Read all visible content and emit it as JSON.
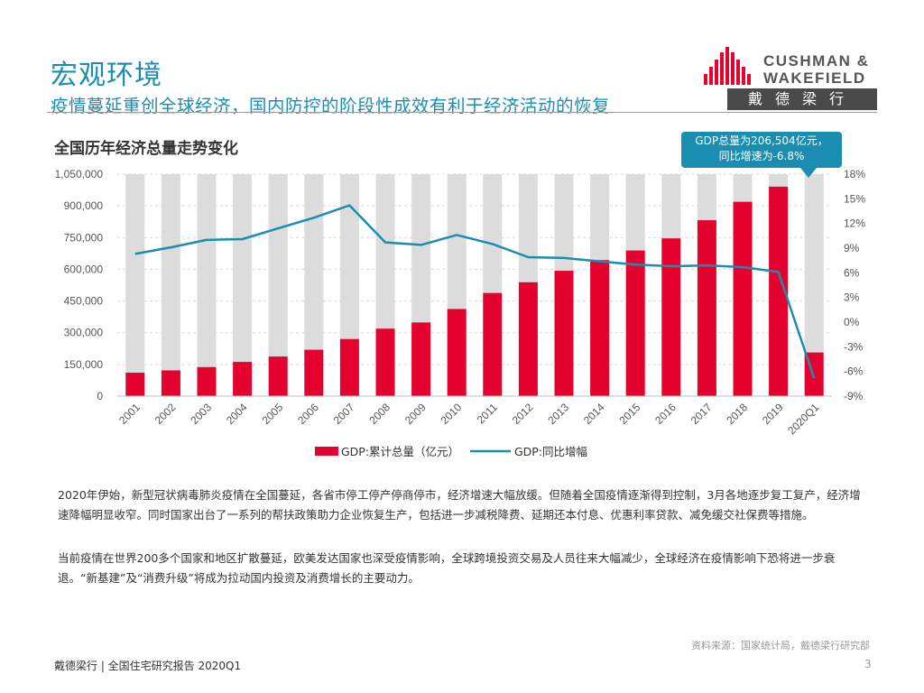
{
  "header": {
    "title": "宏观环境",
    "subtitle": "疫情蔓延重创全球经济，国内防控的阶段性成效有利于经济活动的恢复"
  },
  "logo": {
    "line1": "CUSHMAN &",
    "line2": "WAKEFIELD",
    "band": "戴德梁行",
    "brand_color": "#e4032e"
  },
  "chart_title": "全国历年经济总量走势变化",
  "callout": {
    "line1": "GDP总量为206,504亿元，",
    "line2": "同比增速为-6.8%"
  },
  "chart_data": {
    "type": "bar",
    "categories": [
      "2001",
      "2002",
      "2003",
      "2004",
      "2005",
      "2006",
      "2007",
      "2008",
      "2009",
      "2010",
      "2011",
      "2012",
      "2013",
      "2014",
      "2015",
      "2016",
      "2017",
      "2018",
      "2019",
      "2020Q1"
    ],
    "series": [
      {
        "name": "GDP:累计总量（亿元）",
        "type": "bar",
        "axis": "left",
        "color": "#e4032e",
        "values": [
          110863,
          121717,
          137422,
          161840,
          187319,
          219439,
          270092,
          319245,
          348518,
          412119,
          487940,
          538580,
          592963,
          643563,
          688858,
          746395,
          832036,
          919281,
          990865,
          206504
        ]
      },
      {
        "name": "GDP:同比增幅",
        "type": "line",
        "axis": "right",
        "color": "#1a8db0",
        "values": [
          8.3,
          9.1,
          10.0,
          10.1,
          11.4,
          12.7,
          14.2,
          9.7,
          9.4,
          10.6,
          9.5,
          7.9,
          7.8,
          7.4,
          7.0,
          6.8,
          6.9,
          6.7,
          6.1,
          -6.8
        ]
      }
    ],
    "background_bar_value": 1050000,
    "y_left": {
      "min": 0,
      "max": 1050000,
      "ticks": [
        "0",
        "150,000",
        "300,000",
        "450,000",
        "600,000",
        "750,000",
        "900,000",
        "1,050,000"
      ],
      "tick_values": [
        0,
        150000,
        300000,
        450000,
        600000,
        750000,
        900000,
        1050000
      ]
    },
    "y_right": {
      "min": -9,
      "max": 18,
      "ticks": [
        "-9%",
        "-6%",
        "-3%",
        "0%",
        "3%",
        "6%",
        "9%",
        "12%",
        "15%",
        "18%"
      ],
      "tick_values": [
        -9,
        -6,
        -3,
        0,
        3,
        6,
        9,
        12,
        15,
        18
      ]
    },
    "legend": [
      {
        "label": "GDP:累计总量（亿元）",
        "kind": "bar",
        "color": "#e4032e"
      },
      {
        "label": "GDP:同比增幅",
        "kind": "line",
        "color": "#1a8db0"
      }
    ],
    "legend_position": "bottom"
  },
  "body": {
    "paragraph1": "2020年伊始，新型冠状病毒肺炎疫情在全国蔓延，各省市停工停产停商停市，经济增速大幅放缓。但随着全国疫情逐渐得到控制，3月各地逐步复工复产，经济增速降幅明显收窄。同时国家出台了一系列的帮扶政策助力企业恢复生产，包括进一步减税降费、延期还本付息、优惠利率贷款、减免缓交社保费等措施。",
    "paragraph2": "当前疫情在世界200多个国家和地区扩散蔓延，欧美发达国家也深受疫情影响，全球跨境投资交易及人员往来大幅减少，全球经济在疫情影响下恐将进一步衰退。“新基建”及“消费升级”将成为拉动国内投资及消费增长的主要动力。"
  },
  "source": "资料来源：国家统计局，戴德梁行研究部",
  "footer": {
    "text": "戴德梁行  |  全国住宅研究报告 2020Q1",
    "page_number": "3"
  }
}
